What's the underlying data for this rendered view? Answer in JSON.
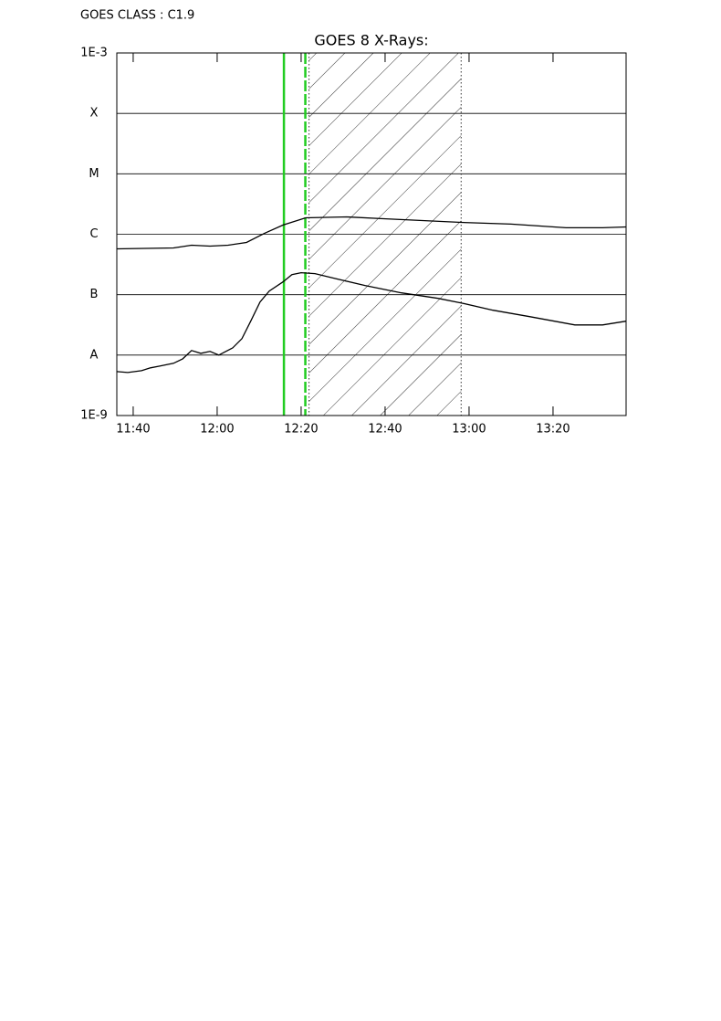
{
  "chart_data": {
    "type": "line",
    "annotation": "GOES CLASS : C1.9",
    "title": "GOES 8 X-Rays:",
    "log_y": true,
    "grid": true,
    "xlim": [
      696.1,
      817.4
    ],
    "ylim": [
      1e-09,
      0.001
    ],
    "xticks": [
      {
        "value": 700,
        "label": "11:40"
      },
      {
        "value": 720,
        "label": "12:00"
      },
      {
        "value": 740,
        "label": "12:20"
      },
      {
        "value": 760,
        "label": "12:40"
      },
      {
        "value": 780,
        "label": "13:00"
      },
      {
        "value": 800,
        "label": "13:20"
      }
    ],
    "yticks": [
      {
        "value": 1e-09,
        "label": "1E-9"
      },
      {
        "value": 1e-08,
        "label": "A"
      },
      {
        "value": 1e-07,
        "label": "B"
      },
      {
        "value": 1e-06,
        "label": "C"
      },
      {
        "value": 1e-05,
        "label": "M"
      },
      {
        "value": 0.0001,
        "label": "X"
      },
      {
        "value": 0.001,
        "label": "1E-3"
      }
    ],
    "series": [
      {
        "color": "#000000",
        "x": [
          696.1,
          709.6,
          713.9,
          718.3,
          722.6,
          727.0,
          731.3,
          735.7,
          741.1,
          750.9,
          759.6,
          768.3,
          778.1,
          790.0,
          803.1,
          811.8,
          817.4
        ],
        "values": [
          5.73e-07,
          5.93e-07,
          6.58e-07,
          6.36e-07,
          6.58e-07,
          7.31e-07,
          1.04e-06,
          1.42e-06,
          1.87e-06,
          1.94e-06,
          1.81e-06,
          1.69e-06,
          1.57e-06,
          1.47e-06,
          1.28e-06,
          1.28e-06,
          1.32e-06
        ]
      },
      {
        "color": "#000000",
        "x": [
          696.1,
          698.7,
          702.0,
          704.1,
          706.3,
          709.6,
          711.8,
          713.9,
          716.1,
          718.3,
          720.4,
          723.7,
          725.9,
          728.1,
          730.2,
          732.4,
          735.7,
          737.8,
          740.0,
          743.3,
          748.7,
          755.2,
          763.9,
          772.6,
          778.1,
          785.7,
          794.4,
          805.2,
          811.8,
          817.4
        ],
        "values": [
          5.33e-09,
          5.15e-09,
          5.52e-09,
          6.14e-09,
          6.58e-09,
          7.31e-09,
          8.69e-09,
          1.19e-08,
          1.07e-08,
          1.15e-08,
          1e-08,
          1.32e-08,
          1.87e-08,
          3.77e-08,
          7.57e-08,
          1.15e-07,
          1.63e-07,
          2.15e-07,
          2.31e-07,
          2.23e-07,
          1.81e-07,
          1.42e-07,
          1.07e-07,
          8.69e-08,
          7.31e-08,
          5.52e-08,
          4.33e-08,
          3.16e-08,
          3.16e-08,
          3.64e-08
        ]
      }
    ],
    "markers": [
      {
        "x": 735.9,
        "color": "#22cc22",
        "style": "solid"
      },
      {
        "x": 741.0,
        "color": "#22cc22",
        "style": "dashed"
      }
    ],
    "shaded_span": [
      741.9,
      778.1
    ]
  }
}
